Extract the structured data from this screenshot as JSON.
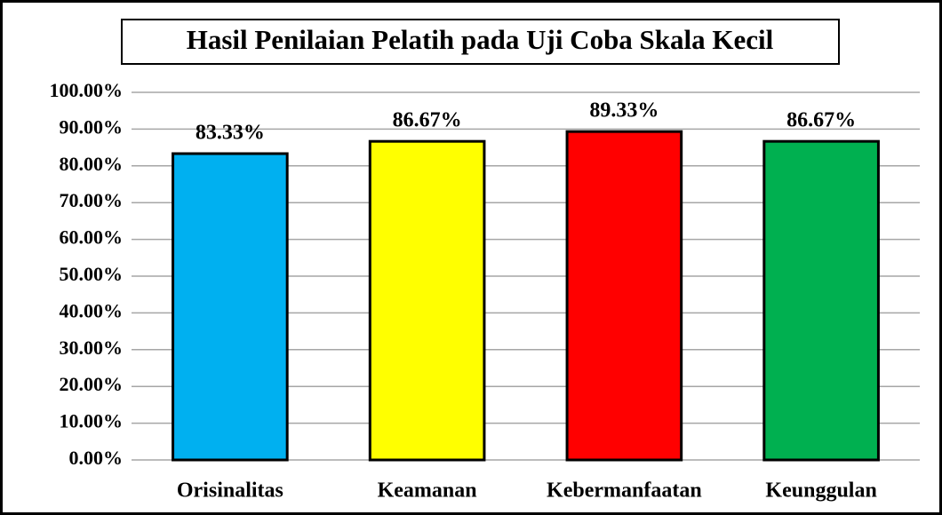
{
  "chart_data": {
    "type": "bar",
    "title": "Hasil Penilaian Pelatih pada Uji Coba Skala Kecil",
    "categories": [
      "Orisinalitas",
      "Keamanan",
      "Kebermanfaatan",
      "Keunggulan"
    ],
    "values": [
      83.33,
      86.67,
      89.33,
      86.67
    ],
    "value_labels": [
      "83.33%",
      "86.67%",
      "89.33%",
      "86.67%"
    ],
    "colors": [
      "#00b0f0",
      "#ffff00",
      "#ff0000",
      "#00b050"
    ],
    "ylim": [
      0,
      100
    ],
    "yticks": [
      {
        "value": 0,
        "label": "0.00%"
      },
      {
        "value": 10,
        "label": "10.00%"
      },
      {
        "value": 20,
        "label": "20.00%"
      },
      {
        "value": 30,
        "label": "30.00%"
      },
      {
        "value": 40,
        "label": "40.00%"
      },
      {
        "value": 50,
        "label": "50.00%"
      },
      {
        "value": 60,
        "label": "60.00%"
      },
      {
        "value": 70,
        "label": "70.00%"
      },
      {
        "value": 80,
        "label": "80.00%"
      },
      {
        "value": 90,
        "label": "90.00%"
      },
      {
        "value": 100,
        "label": "100.00%"
      }
    ],
    "grid": true
  }
}
